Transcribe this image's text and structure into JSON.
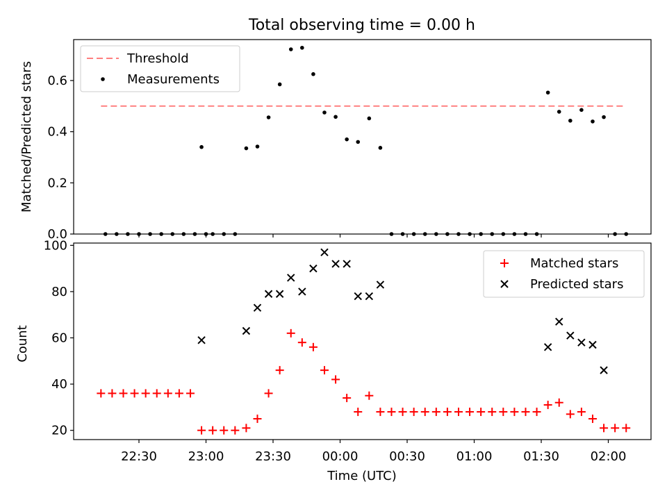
{
  "chart_data": [
    {
      "type": "scatter",
      "panel": "top",
      "title": "Total observing time = 0.00 h",
      "xlabel": "",
      "ylabel": "Matched/Predicted stars",
      "ylim": [
        0,
        0.76
      ],
      "yticks": [
        0.0,
        0.2,
        0.4,
        0.6
      ],
      "ytick_labels": [
        "0.0",
        "0.2",
        "0.4",
        "0.6"
      ],
      "threshold": {
        "name": "Threshold",
        "value": 0.5,
        "color": "#ff7f7f",
        "style": "dashed"
      },
      "legend_position": "upper-left",
      "series": [
        {
          "name": "Measurements",
          "color": "#000000",
          "marker": "dot",
          "points": [
            [
              "22:15",
              0
            ],
            [
              "22:20",
              0
            ],
            [
              "22:25",
              0
            ],
            [
              "22:30",
              0
            ],
            [
              "22:35",
              0
            ],
            [
              "22:40",
              0
            ],
            [
              "22:45",
              0
            ],
            [
              "22:50",
              0
            ],
            [
              "22:55",
              0
            ],
            [
              "23:00",
              0
            ],
            [
              "22:58",
              0.34
            ],
            [
              "23:03",
              0
            ],
            [
              "23:08",
              0
            ],
            [
              "23:13",
              0
            ],
            [
              "23:18",
              0.335
            ],
            [
              "23:23",
              0.342
            ],
            [
              "23:28",
              0.456
            ],
            [
              "23:33",
              0.585
            ],
            [
              "23:38",
              0.722
            ],
            [
              "23:43",
              0.728
            ],
            [
              "23:48",
              0.625
            ],
            [
              "23:53",
              0.475
            ],
            [
              "23:58",
              0.458
            ],
            [
              "00:03",
              0.37
            ],
            [
              "00:08",
              0.36
            ],
            [
              "00:13",
              0.452
            ],
            [
              "00:18",
              0.337
            ],
            [
              "00:23",
              0
            ],
            [
              "00:28",
              0
            ],
            [
              "00:33",
              0
            ],
            [
              "00:38",
              0
            ],
            [
              "00:43",
              0
            ],
            [
              "00:48",
              0
            ],
            [
              "00:53",
              0
            ],
            [
              "00:58",
              0
            ],
            [
              "01:03",
              0
            ],
            [
              "01:08",
              0
            ],
            [
              "01:13",
              0
            ],
            [
              "01:18",
              0
            ],
            [
              "01:23",
              0
            ],
            [
              "01:28",
              0
            ],
            [
              "01:33",
              0.553
            ],
            [
              "01:38",
              0.478
            ],
            [
              "01:43",
              0.443
            ],
            [
              "01:48",
              0.485
            ],
            [
              "01:53",
              0.44
            ],
            [
              "01:58",
              0.457
            ],
            [
              "02:03",
              0
            ],
            [
              "02:08",
              0
            ]
          ]
        }
      ]
    },
    {
      "type": "scatter",
      "panel": "bottom",
      "xlabel": "Time (UTC)",
      "ylabel": "Count",
      "ylim": [
        16,
        101
      ],
      "yticks": [
        20,
        40,
        60,
        80,
        100
      ],
      "xticks": [
        "22:30",
        "23:00",
        "23:30",
        "00:00",
        "00:30",
        "01:00",
        "01:30",
        "02:00"
      ],
      "x_start": "22:30",
      "legend_position": "upper-right",
      "series": [
        {
          "name": "Matched stars",
          "color": "#ff0000",
          "marker": "plus",
          "points": [
            [
              "22:13",
              36
            ],
            [
              "22:18",
              36
            ],
            [
              "22:23",
              36
            ],
            [
              "22:28",
              36
            ],
            [
              "22:33",
              36
            ],
            [
              "22:38",
              36
            ],
            [
              "22:43",
              36
            ],
            [
              "22:48",
              36
            ],
            [
              "22:53",
              36
            ],
            [
              "22:58",
              20
            ],
            [
              "23:03",
              20
            ],
            [
              "23:08",
              20
            ],
            [
              "23:13",
              20
            ],
            [
              "23:18",
              21
            ],
            [
              "23:23",
              25
            ],
            [
              "23:28",
              36
            ],
            [
              "23:33",
              46
            ],
            [
              "23:38",
              62
            ],
            [
              "23:43",
              58
            ],
            [
              "23:48",
              56
            ],
            [
              "23:53",
              46
            ],
            [
              "23:58",
              42
            ],
            [
              "00:03",
              34
            ],
            [
              "00:08",
              28
            ],
            [
              "00:13",
              35
            ],
            [
              "00:18",
              28
            ],
            [
              "00:23",
              28
            ],
            [
              "00:28",
              28
            ],
            [
              "00:33",
              28
            ],
            [
              "00:38",
              28
            ],
            [
              "00:43",
              28
            ],
            [
              "00:48",
              28
            ],
            [
              "00:53",
              28
            ],
            [
              "00:58",
              28
            ],
            [
              "01:03",
              28
            ],
            [
              "01:08",
              28
            ],
            [
              "01:13",
              28
            ],
            [
              "01:18",
              28
            ],
            [
              "01:23",
              28
            ],
            [
              "01:28",
              28
            ],
            [
              "01:33",
              31
            ],
            [
              "01:38",
              32
            ],
            [
              "01:43",
              27
            ],
            [
              "01:48",
              28
            ],
            [
              "01:53",
              25
            ],
            [
              "01:58",
              21
            ],
            [
              "02:03",
              21
            ],
            [
              "02:08",
              21
            ]
          ]
        },
        {
          "name": "Predicted stars",
          "color": "#000000",
          "marker": "x",
          "points": [
            [
              "22:58",
              59
            ],
            [
              "23:18",
              63
            ],
            [
              "23:23",
              73
            ],
            [
              "23:28",
              79
            ],
            [
              "23:33",
              79
            ],
            [
              "23:38",
              86
            ],
            [
              "23:43",
              80
            ],
            [
              "23:48",
              90
            ],
            [
              "23:53",
              97
            ],
            [
              "23:58",
              92
            ],
            [
              "00:03",
              92
            ],
            [
              "00:08",
              78
            ],
            [
              "00:13",
              78
            ],
            [
              "00:18",
              83
            ],
            [
              "01:33",
              56
            ],
            [
              "01:38",
              67
            ],
            [
              "01:43",
              61
            ],
            [
              "01:48",
              58
            ],
            [
              "01:53",
              57
            ],
            [
              "01:58",
              46
            ]
          ]
        }
      ]
    }
  ]
}
